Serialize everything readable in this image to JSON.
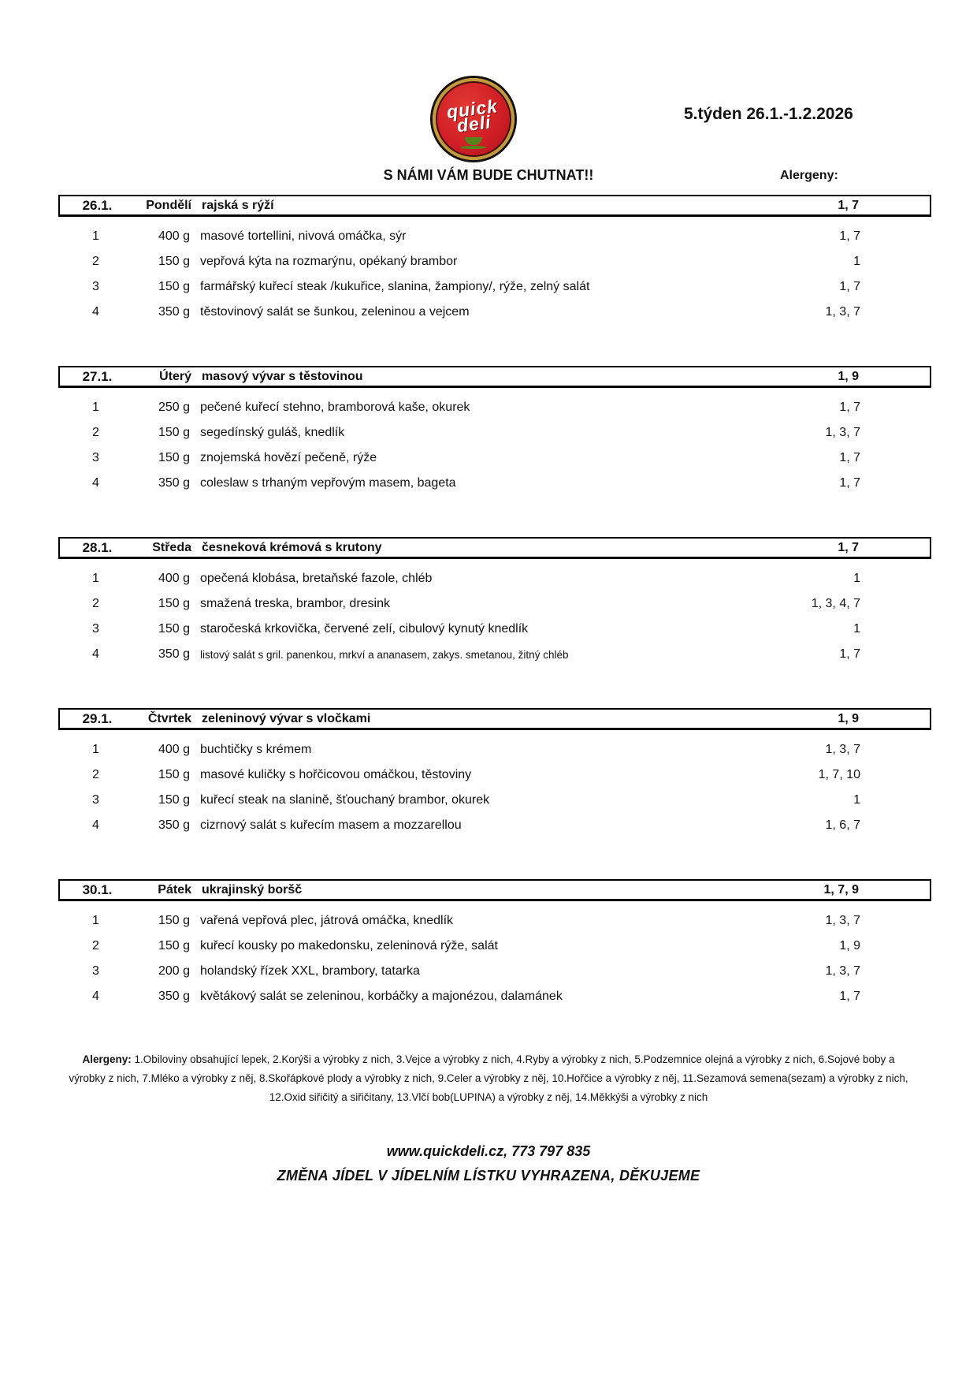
{
  "logo": {
    "line1": "quick",
    "line2": "deli"
  },
  "header": {
    "week_title": "5.týden 26.1.-1.2.2026",
    "slogan": "S NÁMI VÁM BUDE CHUTNAT!!",
    "allergens_label": "Alergeny:"
  },
  "days": [
    {
      "date": "26.1.",
      "day": "Pondělí",
      "soup": "rajská s rýží",
      "soup_allergens": "1, 7",
      "items": [
        {
          "no": "1",
          "weight": "400 g",
          "dish": "masové tortellini, nivová omáčka, sýr",
          "allergens": "1, 7"
        },
        {
          "no": "2",
          "weight": "150 g",
          "dish": "vepřová kýta na rozmarýnu, opékaný brambor",
          "allergens": "1"
        },
        {
          "no": "3",
          "weight": "150 g",
          "dish": "farmářský kuřecí steak /kukuřice, slanina, žampiony/, rýže, zelný salát",
          "allergens": "1, 7"
        },
        {
          "no": "4",
          "weight": "350 g",
          "dish": "těstovinový salát se šunkou, zeleninou a vejcem",
          "allergens": "1, 3, 7"
        }
      ]
    },
    {
      "date": "27.1.",
      "day": "Úterý",
      "soup": "masový vývar s těstovinou",
      "soup_allergens": "1, 9",
      "items": [
        {
          "no": "1",
          "weight": "250 g",
          "dish": "pečené kuřecí stehno, bramborová kaše, okurek",
          "allergens": "1, 7"
        },
        {
          "no": "2",
          "weight": "150 g",
          "dish": "segedínský guláš, knedlík",
          "allergens": "1, 3, 7"
        },
        {
          "no": "3",
          "weight": "150 g",
          "dish": "znojemská hovězí pečeně, rýže",
          "allergens": "1, 7"
        },
        {
          "no": "4",
          "weight": "350 g",
          "dish": "coleslaw s trhaným vepřovým masem, bageta",
          "allergens": "1, 7"
        }
      ]
    },
    {
      "date": "28.1.",
      "day": "Středa",
      "soup": "česneková krémová s krutony",
      "soup_allergens": "1, 7",
      "items": [
        {
          "no": "1",
          "weight": "400 g",
          "dish": "opečená klobása, bretaňské fazole, chléb",
          "allergens": "1"
        },
        {
          "no": "2",
          "weight": "150 g",
          "dish": "smažená treska, brambor, dresink",
          "allergens": "1, 3, 4, 7"
        },
        {
          "no": "3",
          "weight": "150 g",
          "dish": "staročeská krkovička, červené zelí, cibulový kynutý knedlík",
          "allergens": "1"
        },
        {
          "no": "4",
          "weight": "350 g",
          "dish": "listový salát s gril. panenkou, mrkví a ananasem, zakys. smetanou, žitný chléb",
          "allergens": "1, 7"
        }
      ]
    },
    {
      "date": "29.1.",
      "day": "Čtvrtek",
      "soup": "zeleninový vývar s vločkami",
      "soup_allergens": "1, 9",
      "items": [
        {
          "no": "1",
          "weight": "400 g",
          "dish": "buchtičky s krémem",
          "allergens": "1, 3, 7"
        },
        {
          "no": "2",
          "weight": "150 g",
          "dish": "masové kuličky s hořčicovou omáčkou, těstoviny",
          "allergens": "1, 7, 10"
        },
        {
          "no": "3",
          "weight": "150 g",
          "dish": "kuřecí steak na slanině, šťouchaný brambor, okurek",
          "allergens": "1"
        },
        {
          "no": "4",
          "weight": "350 g",
          "dish": "cizrnový salát s kuřecím masem a mozzarellou",
          "allergens": "1, 6, 7"
        }
      ]
    },
    {
      "date": "30.1.",
      "day": "Pátek",
      "soup": "ukrajinský boršč",
      "soup_allergens": "1, 7, 9",
      "items": [
        {
          "no": "1",
          "weight": "150 g",
          "dish": "vařená vepřová plec, játrová omáčka, knedlík",
          "allergens": "1, 3, 7"
        },
        {
          "no": "2",
          "weight": "150 g",
          "dish": "kuřecí kousky po makedonsku, zeleninová rýže, salát",
          "allergens": "1, 9"
        },
        {
          "no": "3",
          "weight": "200 g",
          "dish": "holandský řízek XXL, brambory, tatarka",
          "allergens": "1, 3, 7"
        },
        {
          "no": "4",
          "weight": "350 g",
          "dish": "květákový salát se zeleninou, korbáčky a majonézou, dalamánek",
          "allergens": "1, 7"
        }
      ]
    }
  ],
  "footnote": {
    "label": "Alergeny:",
    "text": "1.Obiloviny obsahující lepek, 2.Korýši a výrobky z nich, 3.Vejce a výrobky z nich, 4.Ryby a výrobky z nich, 5.Podzemnice olejná a výrobky z nich, 6.Sojové boby a výrobky z nich, 7.Mléko a výrobky z něj, 8.Skořápkové plody a výrobky z nich, 9.Celer a výrobky z něj, 10.Hořčice a výrobky z něj, 11.Sezamová semena(sezam) a výrobky z nich, 12.Oxid siřičitý a siřičitany, 13.Vlčí bob(LUPINA) a výrobky z něj, 14.Měkkýši a výrobky z nich"
  },
  "footer": {
    "contact": "www.quickdeli.cz, 773 797 835",
    "notice": "ZMĚNA JÍDEL V JÍDELNÍM LÍSTKU VYHRAZENA, DĚKUJEME"
  },
  "colors": {
    "logo_red": "#d01e25",
    "logo_gold": "#c19a3d",
    "logo_green": "#55841c",
    "text": "#111111"
  }
}
